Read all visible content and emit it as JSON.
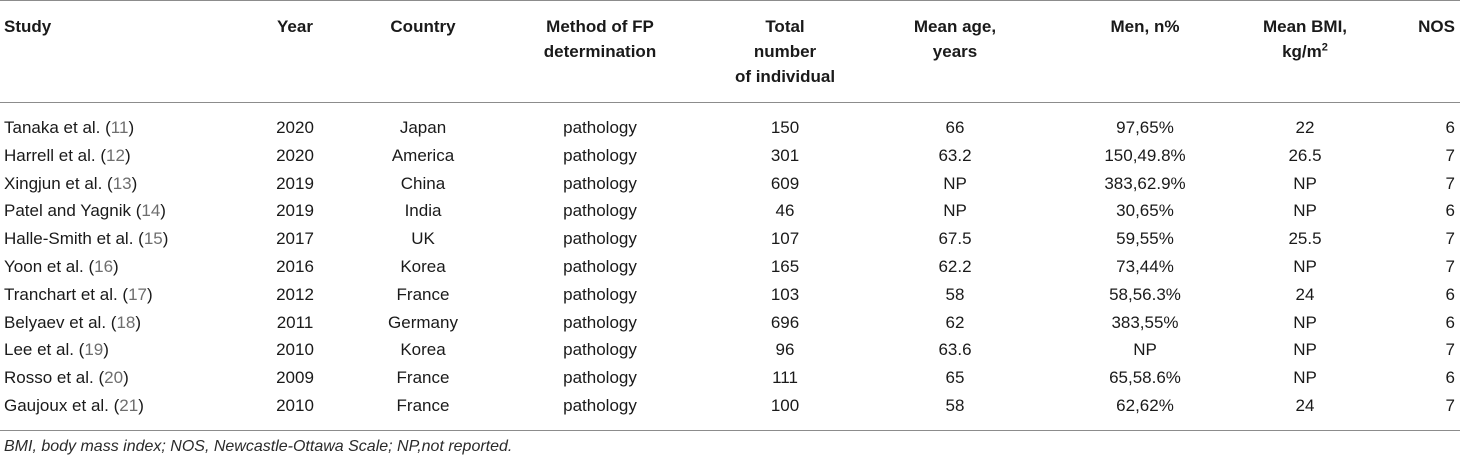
{
  "headers": {
    "study": "Study",
    "year": "Year",
    "country": "Country",
    "method_l1": "Method of FP",
    "method_l2": "determination",
    "total_l1": "Total",
    "total_l2": "number",
    "total_l3": "of individual",
    "age_l1": "Mean age,",
    "age_l2": "years",
    "men": "Men, n%",
    "bmi_l1": "Mean BMI,",
    "bmi_l2": "kg/m",
    "bmi_sup": "2",
    "nos": "NOS"
  },
  "rows": [
    {
      "study": "Tanaka et al. (",
      "ref": "11",
      "close": ")",
      "year": "2020",
      "country": "Japan",
      "method": "pathology",
      "total": "150",
      "age": "66",
      "men": "97,65%",
      "bmi": "22",
      "nos": "6"
    },
    {
      "study": "Harrell et al. (",
      "ref": "12",
      "close": ")",
      "year": "2020",
      "country": "America",
      "method": "pathology",
      "total": "301",
      "age": "63.2",
      "men": "150,49.8%",
      "bmi": "26.5",
      "nos": "7"
    },
    {
      "study": "Xingjun et al. (",
      "ref": "13",
      "close": ")",
      "year": "2019",
      "country": "China",
      "method": "pathology",
      "total": "609",
      "age": "NP",
      "men": "383,62.9%",
      "bmi": "NP",
      "nos": "7"
    },
    {
      "study": "Patel and Yagnik (",
      "ref": "14",
      "close": ")",
      "year": "2019",
      "country": "India",
      "method": "pathology",
      "total": "46",
      "age": "NP",
      "men": "30,65%",
      "bmi": "NP",
      "nos": "6"
    },
    {
      "study": "Halle-Smith et al. (",
      "ref": "15",
      "close": ")",
      "year": "2017",
      "country": "UK",
      "method": "pathology",
      "total": "107",
      "age": "67.5",
      "men": "59,55%",
      "bmi": "25.5",
      "nos": "7"
    },
    {
      "study": "Yoon et al. (",
      "ref": "16",
      "close": ")",
      "year": "2016",
      "country": "Korea",
      "method": "pathology",
      "total": "165",
      "age": "62.2",
      "men": "73,44%",
      "bmi": "NP",
      "nos": "7"
    },
    {
      "study": "Tranchart et al. (",
      "ref": "17",
      "close": ")",
      "year": "2012",
      "country": "France",
      "method": "pathology",
      "total": "103",
      "age": "58",
      "men": "58,56.3%",
      "bmi": "24",
      "nos": "6"
    },
    {
      "study": "Belyaev et al. (",
      "ref": "18",
      "close": ")",
      "year": "2011",
      "country": "Germany",
      "method": "pathology",
      "total": "696",
      "age": "62",
      "men": "383,55%",
      "bmi": "NP",
      "nos": "6"
    },
    {
      "study": "Lee et al. (",
      "ref": "19",
      "close": ")",
      "year": "2010",
      "country": "Korea",
      "method": "pathology",
      "total": "96",
      "age": "63.6",
      "men": "NP",
      "bmi": "NP",
      "nos": "7"
    },
    {
      "study": "Rosso et al. (",
      "ref": "20",
      "close": ")",
      "year": "2009",
      "country": "France",
      "method": "pathology",
      "total": "111",
      "age": "65",
      "men": "65,58.6%",
      "bmi": "NP",
      "nos": "6"
    },
    {
      "study": "Gaujoux et al. (",
      "ref": "21",
      "close": ")",
      "year": "2010",
      "country": "France",
      "method": "pathology",
      "total": "100",
      "age": "58",
      "men": "62,62%",
      "bmi": "24",
      "nos": "7"
    }
  ],
  "footnote": "BMI, body mass index; NOS, Newcastle-Ottawa Scale; NP,not reported."
}
